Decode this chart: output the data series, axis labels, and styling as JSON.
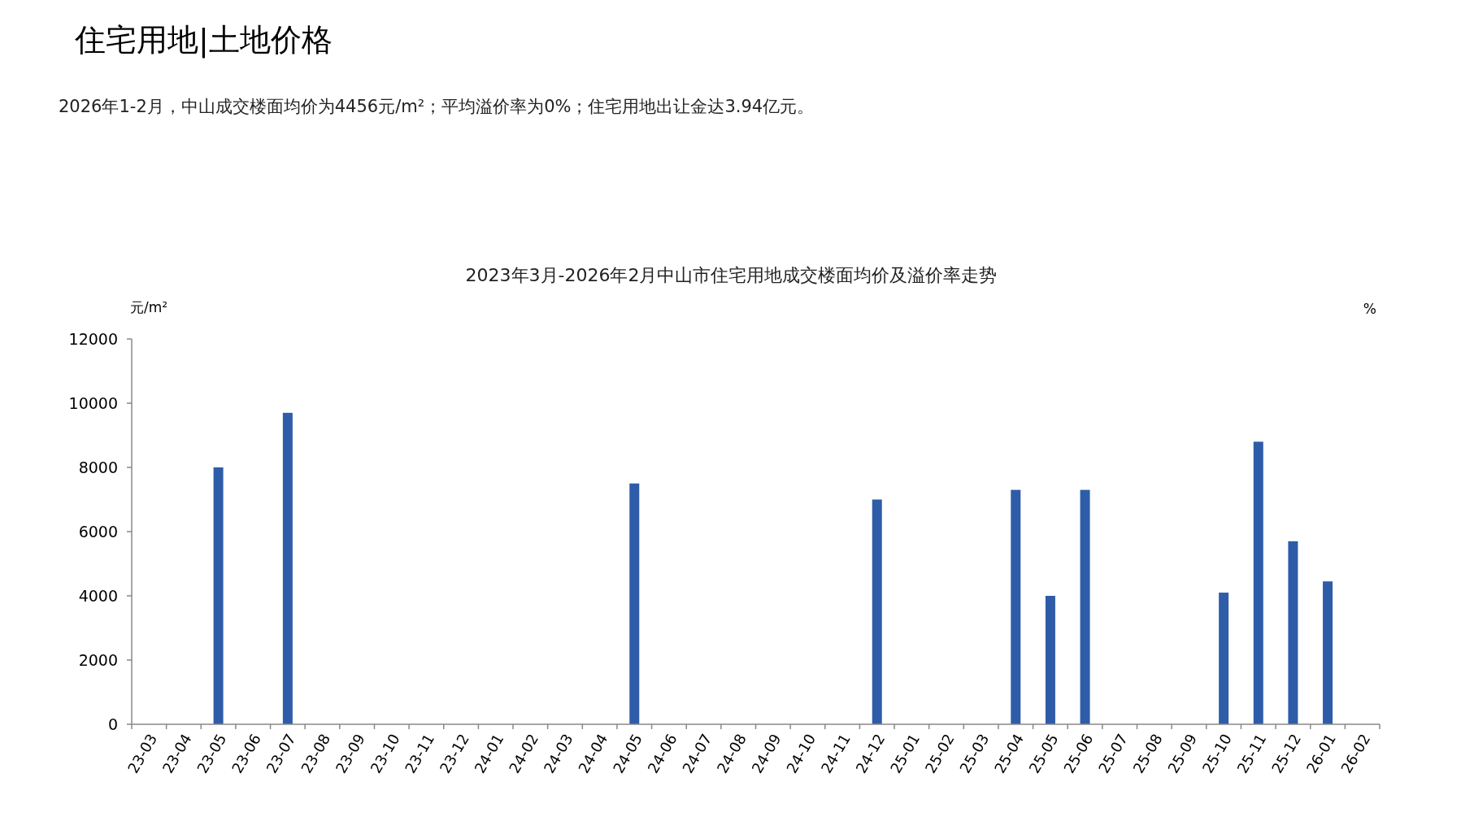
{
  "chart_data": {
    "type": "bar",
    "title": "2023年3月-2026年2月中山市住宅用地成交楼面均价及溢价率走势",
    "annotations": [
      "住宅用地|土地价格",
      "2026年1-2月，中山成交楼面均价为4456元/m²；平均溢价率为0%；住宅用地出让金达3.94亿元。"
    ],
    "ylabel": "元/m²",
    "y2label": "%",
    "categories": [
      "23-03",
      "23-04",
      "23-05",
      "23-06",
      "23-07",
      "23-08",
      "23-09",
      "23-10",
      "23-11",
      "23-12",
      "24-01",
      "24-02",
      "24-03",
      "24-04",
      "24-05",
      "24-06",
      "24-07",
      "24-08",
      "24-09",
      "24-10",
      "24-11",
      "24-12",
      "25-01",
      "25-02",
      "25-03",
      "25-04",
      "25-05",
      "25-06",
      "25-07",
      "25-08",
      "25-09",
      "25-10",
      "25-11",
      "25-12",
      "26-01",
      "26-02"
    ],
    "values": [
      null,
      null,
      8000,
      null,
      9700,
      null,
      null,
      null,
      null,
      null,
      null,
      null,
      null,
      null,
      7500,
      null,
      null,
      null,
      null,
      null,
      null,
      7000,
      null,
      null,
      null,
      7300,
      4000,
      7300,
      null,
      null,
      null,
      4100,
      8800,
      5700,
      4450,
      null
    ],
    "color": "#2e5ca8",
    "ylim": [
      0,
      12000
    ],
    "yticks": [
      0,
      2000,
      4000,
      6000,
      8000,
      10000,
      12000
    ],
    "grid": false
  }
}
